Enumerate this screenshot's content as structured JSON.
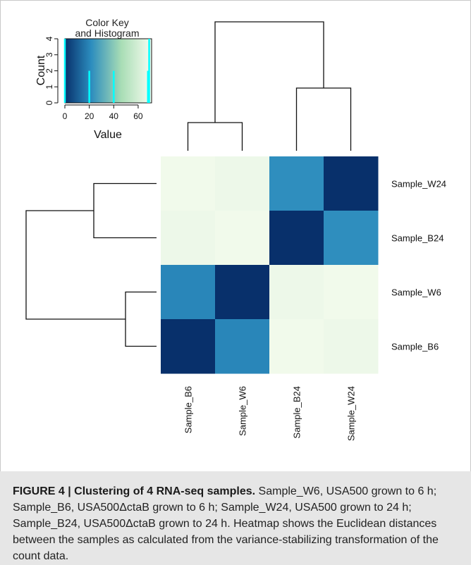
{
  "chart_data": {
    "type": "heatmap",
    "rows": [
      "Sample_W24",
      "Sample_B24",
      "Sample_W6",
      "Sample_B6"
    ],
    "columns": [
      "Sample_B6",
      "Sample_W6",
      "Sample_B24",
      "Sample_W24"
    ],
    "values": [
      [
        69,
        68,
        22,
        0
      ],
      [
        68,
        69,
        0,
        22
      ],
      [
        20,
        0,
        68,
        69
      ],
      [
        0,
        20,
        69,
        68
      ]
    ],
    "color_scale": [
      "#08306b",
      "#2b8cbe",
      "#a8ddb5",
      "#f7fcf0"
    ],
    "dendrogram": "row and column",
    "color_key": {
      "title": "Color Key\nand Histogram",
      "xlabel": "Value",
      "ylabel": "Count",
      "x_ticks": [
        0,
        20,
        40,
        60
      ],
      "y_ticks": [
        0,
        1,
        2,
        3,
        4
      ],
      "xlim": [
        0,
        71
      ],
      "ylim": [
        0,
        4
      ],
      "histogram": [
        {
          "value": 0,
          "count": 4
        },
        {
          "value": 20,
          "count": 2
        },
        {
          "value": 40,
          "count": 2
        },
        {
          "value": 68,
          "count": 2
        },
        {
          "value": 69,
          "count": 4
        }
      ]
    }
  },
  "caption": {
    "label": "FIGURE 4 | ",
    "title": "Clustering of 4 RNA-seq samples.",
    "text": " Sample_W6, USA500 grown to 6 h; Sample_B6, USA500ΔctaB grown to 6 h; Sample_W24, USA500 grown to 24 h; Sample_B24, USA500ΔctaB grown to 24 h. Heatmap shows the Euclidean distances between the samples as calculated from the variance-stabilizing transformation of the count data."
  }
}
